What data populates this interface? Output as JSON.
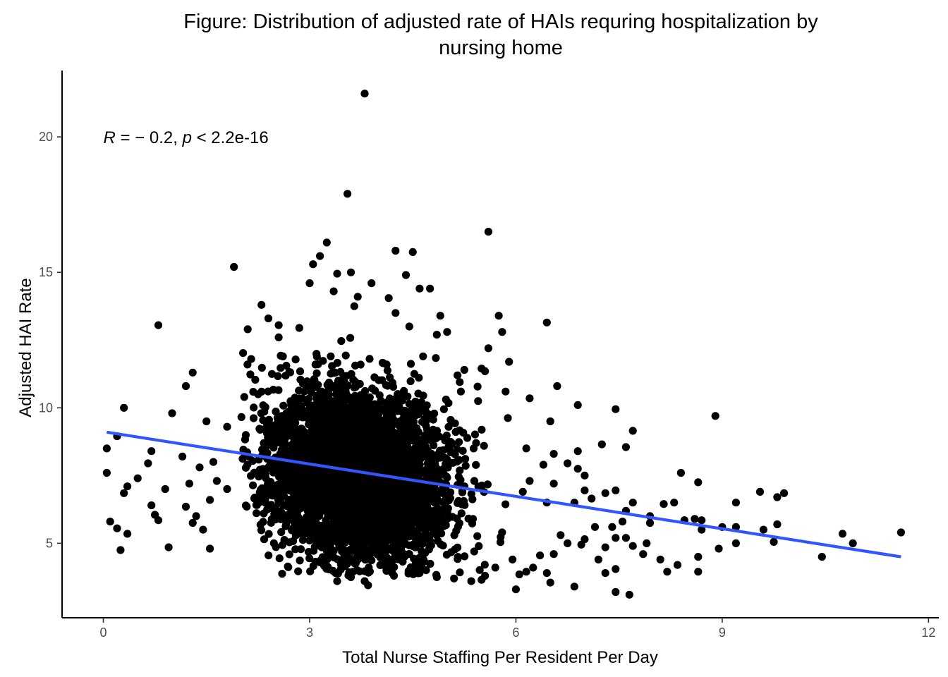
{
  "chart_data": {
    "type": "scatter",
    "title_lines": [
      "Figure: Distribution of adjusted rate of HAIs requring hospitalization by",
      "nursing home"
    ],
    "xlabel": "Total Nurse Staffing Per Resident Per Day",
    "ylabel": "Adjusted HAI Rate",
    "xlim": [
      -0.6,
      12.15
    ],
    "ylim": [
      2.25,
      22.45
    ],
    "x_ticks": [
      0,
      3,
      6,
      9,
      12
    ],
    "y_ticks": [
      5,
      10,
      15,
      20
    ],
    "x_tick_labels": [
      "0",
      "3",
      "6",
      "9",
      "12"
    ],
    "y_tick_labels": [
      "5",
      "10",
      "15",
      "20"
    ],
    "grid": false,
    "annotation": {
      "r_symbol": "R",
      "r_text": " = − 0.2, ",
      "p_symbol": "p",
      "p_text": " < 2.2e-16",
      "x": 0.0,
      "y": 20.0
    },
    "fit_line": {
      "color": "#3355ff",
      "points": [
        [
          0.05,
          9.1
        ],
        [
          11.6,
          4.5
        ]
      ]
    },
    "point_color": "#000000",
    "dense_cluster": {
      "center": [
        3.4,
        7.6
      ],
      "x_range": [
        2.0,
        6.0
      ],
      "y_range": [
        3.8,
        12.8
      ],
      "n": 4200
    },
    "points": [
      [
        3.8,
        21.6
      ],
      [
        3.55,
        17.9
      ],
      [
        5.6,
        16.5
      ],
      [
        1.9,
        15.2
      ],
      [
        3.25,
        16.1
      ],
      [
        3.15,
        15.6
      ],
      [
        4.25,
        15.8
      ],
      [
        4.5,
        15.75
      ],
      [
        4.6,
        14.4
      ],
      [
        4.75,
        14.4
      ],
      [
        3.6,
        15.0
      ],
      [
        4.4,
        14.9
      ],
      [
        4.9,
        13.4
      ],
      [
        5.75,
        13.4
      ],
      [
        5.8,
        12.8
      ],
      [
        6.45,
        13.15
      ],
      [
        5.6,
        12.2
      ],
      [
        5.0,
        12.8
      ],
      [
        2.3,
        13.8
      ],
      [
        0.8,
        13.05
      ],
      [
        2.1,
        12.9
      ],
      [
        2.55,
        13.05
      ],
      [
        1.3,
        11.3
      ],
      [
        1.2,
        10.8
      ],
      [
        0.3,
        10.0
      ],
      [
        1.0,
        9.8
      ],
      [
        1.5,
        9.5
      ],
      [
        1.8,
        9.3
      ],
      [
        0.2,
        8.95
      ],
      [
        0.05,
        8.5
      ],
      [
        0.7,
        8.4
      ],
      [
        1.15,
        8.2
      ],
      [
        1.6,
        8.0
      ],
      [
        0.65,
        7.95
      ],
      [
        1.4,
        7.8
      ],
      [
        0.05,
        7.6
      ],
      [
        0.5,
        7.4
      ],
      [
        1.65,
        7.3
      ],
      [
        0.35,
        7.1
      ],
      [
        1.25,
        7.2
      ],
      [
        0.9,
        7.0
      ],
      [
        1.8,
        7.0
      ],
      [
        0.3,
        6.85
      ],
      [
        1.55,
        6.6
      ],
      [
        0.7,
        6.4
      ],
      [
        1.2,
        6.35
      ],
      [
        0.75,
        6.05
      ],
      [
        1.35,
        6.0
      ],
      [
        0.8,
        5.85
      ],
      [
        1.3,
        5.75
      ],
      [
        0.1,
        5.8
      ],
      [
        0.2,
        5.55
      ],
      [
        1.45,
        5.5
      ],
      [
        0.35,
        5.35
      ],
      [
        0.25,
        4.75
      ],
      [
        0.95,
        4.85
      ],
      [
        1.55,
        4.8
      ],
      [
        5.9,
        11.7
      ],
      [
        5.55,
        11.35
      ],
      [
        5.2,
        10.6
      ],
      [
        5.85,
        10.6
      ],
      [
        6.2,
        10.35
      ],
      [
        6.6,
        10.8
      ],
      [
        6.5,
        9.5
      ],
      [
        6.9,
        10.1
      ],
      [
        7.45,
        9.95
      ],
      [
        7.6,
        8.55
      ],
      [
        7.25,
        8.65
      ],
      [
        8.9,
        9.7
      ],
      [
        7.7,
        9.15
      ],
      [
        6.15,
        8.5
      ],
      [
        6.55,
        8.3
      ],
      [
        6.9,
        8.4
      ],
      [
        6.4,
        7.9
      ],
      [
        6.75,
        7.95
      ],
      [
        6.9,
        7.75
      ],
      [
        7.0,
        7.5
      ],
      [
        8.4,
        7.6
      ],
      [
        8.65,
        7.25
      ],
      [
        6.2,
        7.3
      ],
      [
        6.55,
        7.2
      ],
      [
        7.0,
        6.95
      ],
      [
        7.3,
        6.85
      ],
      [
        7.45,
        6.95
      ],
      [
        7.7,
        6.5
      ],
      [
        6.1,
        6.9
      ],
      [
        6.45,
        6.5
      ],
      [
        6.85,
        6.5
      ],
      [
        7.1,
        6.65
      ],
      [
        7.6,
        6.2
      ],
      [
        7.95,
        6.0
      ],
      [
        8.15,
        6.45
      ],
      [
        8.3,
        6.5
      ],
      [
        8.6,
        5.9
      ],
      [
        9.0,
        5.6
      ],
      [
        9.2,
        6.5
      ],
      [
        9.55,
        6.9
      ],
      [
        9.8,
        6.7
      ],
      [
        9.9,
        6.85
      ],
      [
        9.8,
        5.7
      ],
      [
        9.2,
        5.6
      ],
      [
        9.6,
        5.5
      ],
      [
        9.75,
        5.05
      ],
      [
        10.45,
        4.5
      ],
      [
        10.75,
        5.35
      ],
      [
        10.9,
        5.0
      ],
      [
        11.6,
        5.4
      ],
      [
        8.7,
        5.5
      ],
      [
        9.2,
        5.0
      ],
      [
        8.95,
        4.8
      ],
      [
        8.65,
        4.5
      ],
      [
        8.65,
        3.95
      ],
      [
        8.35,
        4.2
      ],
      [
        8.2,
        3.95
      ],
      [
        8.1,
        4.4
      ],
      [
        7.95,
        5.75
      ],
      [
        7.9,
        5.0
      ],
      [
        7.6,
        5.2
      ],
      [
        7.45,
        5.2
      ],
      [
        7.3,
        4.85
      ],
      [
        7.2,
        4.4
      ],
      [
        7.0,
        5.15
      ],
      [
        6.95,
        4.95
      ],
      [
        6.75,
        5.0
      ],
      [
        6.65,
        5.3
      ],
      [
        6.55,
        4.6
      ],
      [
        6.35,
        4.55
      ],
      [
        6.25,
        4.1
      ],
      [
        6.15,
        3.95
      ],
      [
        6.05,
        3.85
      ],
      [
        5.95,
        4.4
      ],
      [
        6.45,
        3.9
      ],
      [
        6.5,
        3.55
      ],
      [
        6.85,
        3.4
      ],
      [
        6.0,
        3.3
      ],
      [
        7.3,
        3.9
      ],
      [
        7.45,
        4.05
      ],
      [
        7.85,
        4.6
      ],
      [
        7.7,
        4.9
      ],
      [
        7.45,
        3.2
      ],
      [
        7.65,
        3.1
      ],
      [
        7.4,
        5.6
      ],
      [
        7.15,
        5.6
      ],
      [
        7.55,
        5.8
      ],
      [
        8.45,
        5.85
      ],
      [
        8.7,
        5.85
      ],
      [
        5.7,
        4.1
      ],
      [
        5.55,
        3.8
      ],
      [
        5.1,
        3.7
      ],
      [
        4.85,
        3.75
      ],
      [
        4.6,
        3.9
      ],
      [
        4.2,
        3.9
      ],
      [
        3.8,
        3.6
      ],
      [
        3.6,
        3.75
      ],
      [
        3.4,
        3.6
      ],
      [
        3.85,
        3.45
      ],
      [
        5.5,
        3.65
      ],
      [
        5.35,
        3.6
      ],
      [
        4.15,
        14.05
      ],
      [
        4.25,
        13.5
      ],
      [
        4.45,
        13.0
      ],
      [
        4.85,
        12.7
      ],
      [
        2.4,
        13.3
      ],
      [
        2.55,
        12.6
      ],
      [
        2.85,
        12.95
      ],
      [
        3.0,
        14.6
      ],
      [
        3.35,
        14.3
      ],
      [
        3.9,
        14.6
      ],
      [
        3.7,
        14.1
      ],
      [
        2.05,
        10.4
      ],
      [
        2.15,
        11.8
      ],
      [
        3.05,
        15.3
      ],
      [
        3.4,
        14.95
      ],
      [
        3.65,
        13.75
      ],
      [
        5.25,
        11.4
      ],
      [
        5.5,
        11.45
      ],
      [
        5.15,
        11.2
      ],
      [
        4.65,
        11.9
      ],
      [
        5.45,
        10.25
      ]
    ]
  }
}
